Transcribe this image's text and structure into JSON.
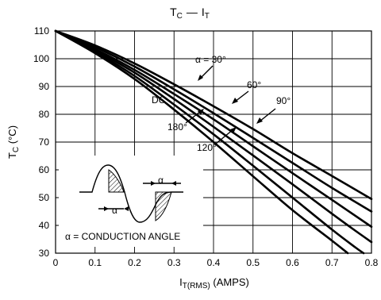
{
  "chart_data": {
    "type": "line",
    "title_main": "T",
    "title_sub": "C",
    "title_dash": "—",
    "title_main2": "I",
    "title_sub2": "T",
    "xlabel_main": "I",
    "xlabel_sub": "T(RMS)",
    "xlabel_suffix": " (AMPS)",
    "ylabel_main": "T",
    "ylabel_sub": "C",
    "ylabel_suffix": " (°C)",
    "xlim": [
      0,
      0.8
    ],
    "ylim": [
      30,
      110
    ],
    "x_ticks": [
      "0",
      "0.1",
      "0.2",
      "0.3",
      "0.4",
      "0.5",
      "0.6",
      "0.7",
      "0.8"
    ],
    "y_ticks": [
      "30",
      "40",
      "50",
      "60",
      "70",
      "80",
      "90",
      "100",
      "110"
    ],
    "grid": true,
    "series": [
      {
        "name": "DC",
        "points": [
          [
            0,
            110
          ],
          [
            0.1,
            104.8
          ],
          [
            0.2,
            98.3
          ],
          [
            0.3,
            90.8
          ],
          [
            0.4,
            82.9
          ],
          [
            0.5,
            74.7
          ],
          [
            0.6,
            66
          ],
          [
            0.7,
            57.8
          ],
          [
            0.8,
            49.5
          ]
        ]
      },
      {
        "name": "180°",
        "points": [
          [
            0,
            110
          ],
          [
            0.1,
            104.2
          ],
          [
            0.2,
            97.2
          ],
          [
            0.3,
            89
          ],
          [
            0.4,
            80.4
          ],
          [
            0.5,
            71.5
          ],
          [
            0.6,
            62.5
          ],
          [
            0.7,
            53.5
          ],
          [
            0.8,
            45
          ]
        ]
      },
      {
        "name": "120°",
        "points": [
          [
            0,
            110
          ],
          [
            0.1,
            103.5
          ],
          [
            0.2,
            96
          ],
          [
            0.3,
            87.3
          ],
          [
            0.4,
            78.2
          ],
          [
            0.5,
            68.5
          ],
          [
            0.6,
            58.8
          ],
          [
            0.7,
            49.2
          ],
          [
            0.8,
            39.5
          ]
        ]
      },
      {
        "name": "90°",
        "points": [
          [
            0,
            110
          ],
          [
            0.1,
            103
          ],
          [
            0.2,
            95
          ],
          [
            0.3,
            85.5
          ],
          [
            0.4,
            75.5
          ],
          [
            0.5,
            65.2
          ],
          [
            0.6,
            54.8
          ],
          [
            0.7,
            44.2
          ],
          [
            0.76,
            38
          ],
          [
            0.8,
            34
          ]
        ]
      },
      {
        "name": "60°",
        "points": [
          [
            0,
            110
          ],
          [
            0.1,
            102.5
          ],
          [
            0.2,
            93.8
          ],
          [
            0.3,
            83.5
          ],
          [
            0.4,
            72.8
          ],
          [
            0.5,
            61.5
          ],
          [
            0.6,
            50
          ],
          [
            0.7,
            38.5
          ],
          [
            0.76,
            32
          ],
          [
            0.78,
            30
          ]
        ]
      },
      {
        "name": "α = 30°",
        "points": [
          [
            0,
            110
          ],
          [
            0.1,
            102
          ],
          [
            0.2,
            92.7
          ],
          [
            0.3,
            81.7
          ],
          [
            0.4,
            70
          ],
          [
            0.5,
            57.7
          ],
          [
            0.6,
            45.5
          ],
          [
            0.7,
            34.5
          ],
          [
            0.74,
            30
          ]
        ]
      }
    ],
    "annotations": {
      "alpha_30": "α = 30°",
      "sixty": "60°",
      "ninety": "90°",
      "dc": "DC",
      "one_eighty": "180°",
      "one_twenty": "120°",
      "inset_alpha_left": "α",
      "inset_alpha_right": "α",
      "inset_caption": "α = CONDUCTION ANGLE"
    }
  }
}
